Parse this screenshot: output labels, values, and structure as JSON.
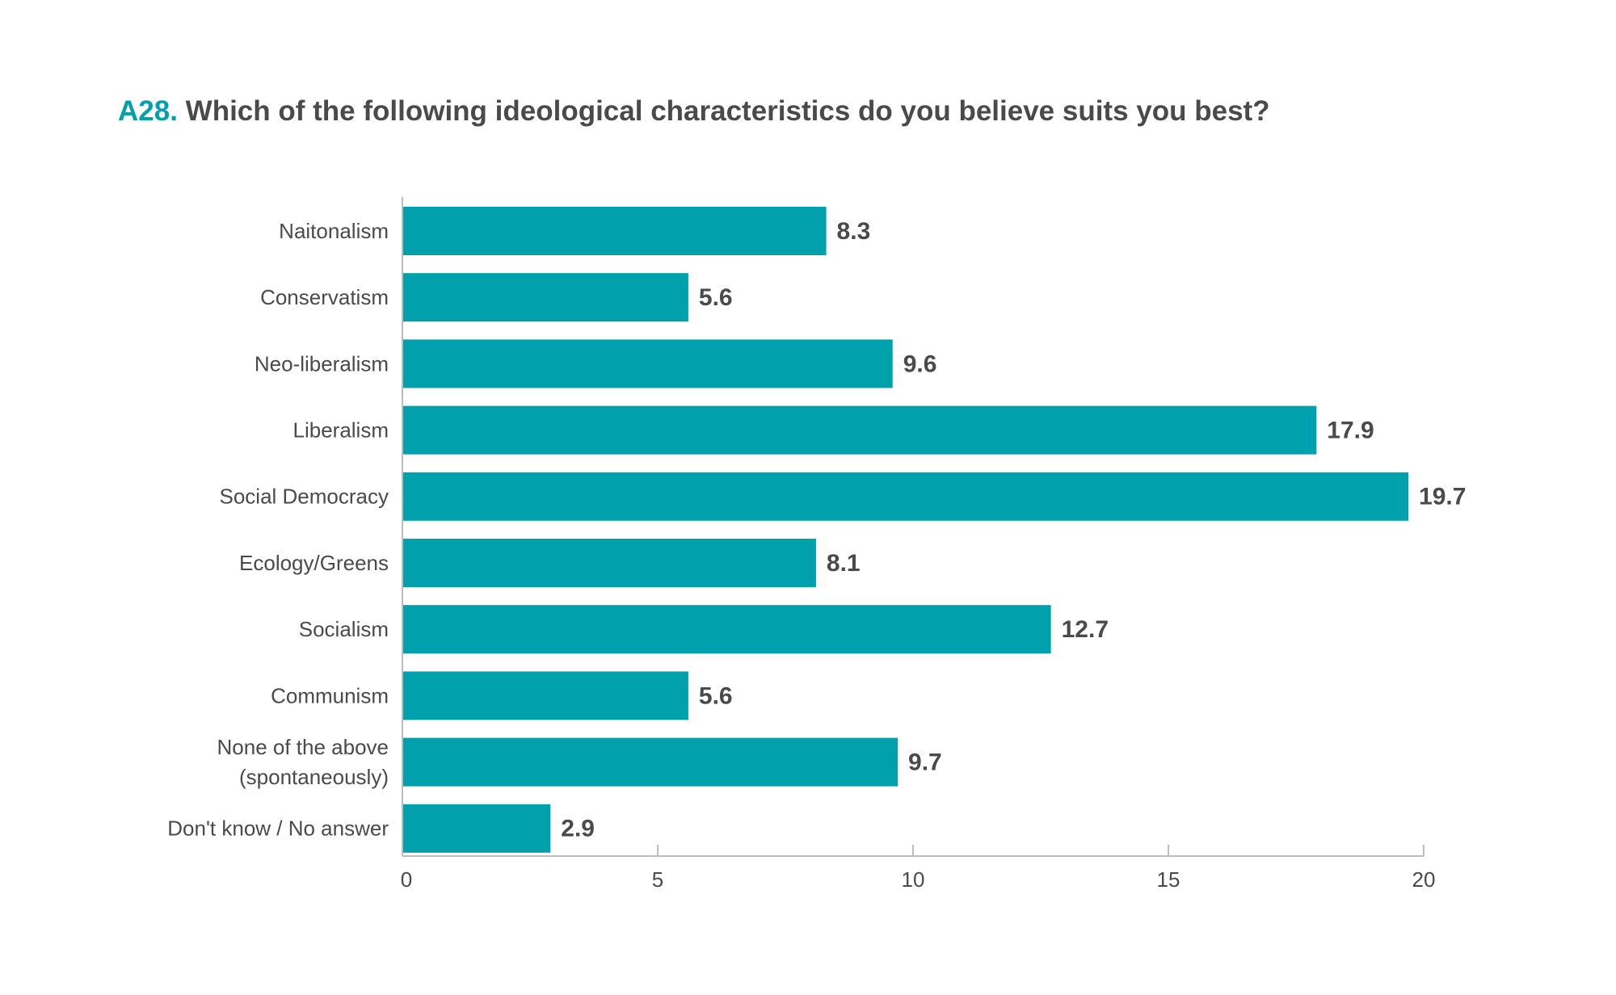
{
  "chart_data": {
    "type": "bar",
    "orientation": "horizontal",
    "title_id": "A28.",
    "title": "Which of the following ideological characteristics do you believe suits you best?",
    "categories": [
      "Naitonalism",
      "Conservatism",
      "Neo-liberalism",
      "Liberalism",
      "Social Democracy",
      "Ecology/Greens",
      "Socialism",
      "Communism",
      "None of the above (spontaneously)",
      "Don't know / No answer"
    ],
    "category_lines": [
      [
        "Naitonalism"
      ],
      [
        "Conservatism"
      ],
      [
        "Neo-liberalism"
      ],
      [
        "Liberalism"
      ],
      [
        "Social Democracy"
      ],
      [
        "Ecology/Greens"
      ],
      [
        "Socialism"
      ],
      [
        "Communism"
      ],
      [
        "None of the above",
        "(spontaneously)"
      ],
      [
        "Don't know / No answer"
      ]
    ],
    "values": [
      8.3,
      5.6,
      9.6,
      17.9,
      19.7,
      8.1,
      12.7,
      5.6,
      9.7,
      2.9
    ],
    "value_labels": [
      "8.3",
      "5.6",
      "9.6",
      "17.9",
      "19.7",
      "8.1",
      "12.7",
      "5.6",
      "9.7",
      "2.9"
    ],
    "xlim": [
      0,
      20
    ],
    "xticks": [
      0,
      5,
      10,
      15,
      20
    ],
    "xtick_labels": [
      "0",
      "5",
      "10",
      "15",
      "20"
    ],
    "xlabel": "",
    "ylabel": "",
    "grid": false,
    "legend": "none",
    "bar_color": "#00a0ad",
    "title_id_color": "#00a0ad",
    "text_color": "#4a4a4a",
    "axis_color": "#bdbdbd"
  }
}
